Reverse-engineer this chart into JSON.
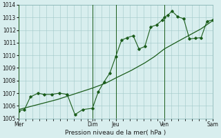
{
  "title": "",
  "xlabel": "Pression niveau de la mer( hPa )",
  "bg_color": "#d8eeee",
  "grid_color": "#a0c8c8",
  "line_color": "#1a5c1a",
  "ylim": [
    1005,
    1014
  ],
  "yticks": [
    1005,
    1006,
    1007,
    1008,
    1009,
    1010,
    1011,
    1012,
    1013,
    1014
  ],
  "xlim": [
    0,
    100
  ],
  "day_lines_x": [
    0,
    38,
    50,
    75,
    100
  ],
  "xtick_positions": [
    0,
    38,
    50,
    75,
    100
  ],
  "xtick_labels": [
    "Mer",
    "Dim",
    "Jeu",
    "Ven",
    "Sam"
  ],
  "smooth_line": [
    [
      0,
      1005.7
    ],
    [
      10,
      1006.1
    ],
    [
      20,
      1006.5
    ],
    [
      30,
      1007.0
    ],
    [
      38,
      1007.4
    ],
    [
      45,
      1007.8
    ],
    [
      50,
      1008.2
    ],
    [
      58,
      1008.8
    ],
    [
      65,
      1009.4
    ],
    [
      70,
      1009.9
    ],
    [
      75,
      1010.5
    ],
    [
      82,
      1011.1
    ],
    [
      88,
      1011.6
    ],
    [
      94,
      1012.1
    ],
    [
      100,
      1012.75
    ]
  ],
  "jagged_line": [
    [
      0,
      1005.6
    ],
    [
      3,
      1005.7
    ],
    [
      6,
      1006.7
    ],
    [
      10,
      1007.0
    ],
    [
      13,
      1006.9
    ],
    [
      17,
      1006.9
    ],
    [
      21,
      1007.0
    ],
    [
      25,
      1006.9
    ],
    [
      29,
      1005.3
    ],
    [
      33,
      1005.7
    ],
    [
      38,
      1005.8
    ],
    [
      41,
      1007.1
    ],
    [
      44,
      1007.9
    ],
    [
      47,
      1008.6
    ],
    [
      50,
      1009.9
    ],
    [
      53,
      1011.2
    ],
    [
      56,
      1011.4
    ],
    [
      59,
      1011.55
    ],
    [
      62,
      1010.5
    ],
    [
      65,
      1010.7
    ],
    [
      68,
      1012.25
    ],
    [
      71,
      1012.4
    ],
    [
      74,
      1012.8
    ],
    [
      75,
      1013.0
    ],
    [
      77,
      1013.2
    ],
    [
      79,
      1013.5
    ],
    [
      82,
      1013.05
    ],
    [
      85,
      1012.9
    ],
    [
      88,
      1011.3
    ],
    [
      91,
      1011.35
    ],
    [
      94,
      1011.4
    ],
    [
      97,
      1012.7
    ],
    [
      100,
      1012.8
    ]
  ]
}
